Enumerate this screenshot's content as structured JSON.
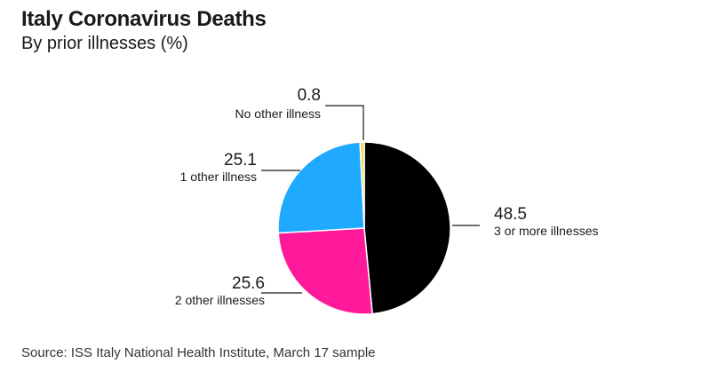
{
  "header": {
    "title": "Italy Coronavirus Deaths",
    "subtitle": "By prior illnesses (%)"
  },
  "footer": {
    "source": "Source: ISS Italy National Health Institute, March 17 sample"
  },
  "chart_data": {
    "type": "pie",
    "title": "Italy Coronavirus Deaths",
    "subtitle": "By prior illnesses (%)",
    "slices": [
      {
        "label": "3 or more illnesses",
        "value": 48.5,
        "value_text": "48.5",
        "color": "#000000"
      },
      {
        "label": "2 other illnesses",
        "value": 25.6,
        "value_text": "25.6",
        "color": "#ff1a9c"
      },
      {
        "label": "1 other illness",
        "value": 25.1,
        "value_text": "25.1",
        "color": "#1fa9ff"
      },
      {
        "label": "No other illness",
        "value": 0.8,
        "value_text": "0.8",
        "color": "#f2d94e"
      }
    ]
  }
}
